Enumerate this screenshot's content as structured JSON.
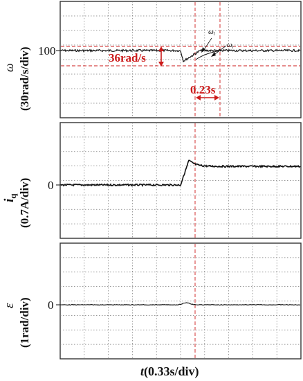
{
  "chart_data": [
    {
      "type": "line",
      "ylabel_symbol": "ω",
      "ylabel_unit": "(30rad/s/div)",
      "ytick": "100",
      "ytick_value": 100,
      "y_per_div": 30,
      "x_per_div": 0.33,
      "step_time_div": 5,
      "steady_value": 100,
      "dip": 36,
      "recovery_time": 0.23,
      "annotations": {
        "dip_label": "36rad/s",
        "time_label": "0.23s",
        "ref_label": "ω",
        "ref_sub": "r",
        "actual_label": "ω",
        "actual_sub": "l"
      }
    },
    {
      "type": "line",
      "ylabel_symbol": "i",
      "ylabel_sub": "q",
      "ylabel_unit": "(0.7A/div)",
      "ytick": "0",
      "ytick_value": 0,
      "y_per_div": 0.7,
      "x_per_div": 0.33,
      "before_value": 0,
      "after_value": 0.9,
      "peak_value": 1.2
    },
    {
      "type": "line",
      "ylabel_symbol": "ε",
      "ylabel_unit": "(1rad/div)",
      "ytick": "0",
      "ytick_value": 0,
      "y_per_div": 1,
      "x_per_div": 0.33,
      "value": 0,
      "bump": 0.15
    }
  ],
  "xlabel": {
    "symbol": "t",
    "unit": "(0.33s/div)"
  },
  "colors": {
    "trace": "#111111",
    "grid": "#777777",
    "annotation": "#cc1a1a",
    "frame": "#333333"
  }
}
